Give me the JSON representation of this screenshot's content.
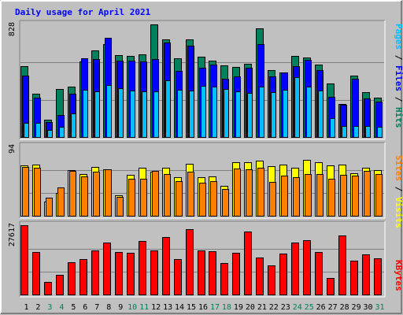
{
  "chart_data": {
    "type": "bar",
    "title": "Daily usage for April 2021",
    "days": [
      "1",
      "2",
      "3",
      "4",
      "5",
      "6",
      "7",
      "8",
      "9",
      "10",
      "11",
      "12",
      "13",
      "14",
      "15",
      "16",
      "17",
      "18",
      "19",
      "20",
      "21",
      "22",
      "23",
      "24",
      "25",
      "26",
      "27",
      "28",
      "29",
      "30",
      "31"
    ],
    "weekend_days": [
      "3",
      "4",
      "10",
      "11",
      "17",
      "18",
      "24",
      "25",
      "31"
    ],
    "colors": {
      "hits": "#00805c",
      "files": "#0000ff",
      "pages": "#00c0ff",
      "visits": "#ffff00",
      "sites": "#ff8000",
      "kbytes": "#ff0000",
      "title": "#0000ff",
      "weekday_label": "#000000",
      "weekend_label": "#00805c",
      "plot_bg": "#c0c0c0",
      "gridline": "#808080"
    },
    "panels": [
      {
        "id": "hits-files-pages",
        "max_label": "828",
        "ymax": 828,
        "series": [
          {
            "name": "Hits",
            "key": "hits",
            "values": [
              525,
              320,
              135,
              355,
              375,
              555,
              636,
              685,
              605,
              600,
              609,
              828,
              717,
              580,
              716,
              592,
              563,
              527,
              519,
              539,
              798,
              497,
              480,
              598,
              589,
              536,
              397,
              249,
              454,
              333,
              296
            ]
          },
          {
            "name": "Files",
            "key": "files",
            "values": [
              456,
              295,
              115,
              164,
              322,
              583,
              576,
              729,
              566,
              561,
              557,
              573,
              695,
              487,
              675,
              511,
              532,
              432,
              446,
              511,
              683,
              448,
              476,
              526,
              568,
              493,
              300,
              240,
              430,
              285,
              267
            ]
          },
          {
            "name": "Pages",
            "key": "pages",
            "values": [
              107,
              107,
              55,
              82,
              180,
              349,
              338,
              388,
              361,
              345,
              340,
              338,
              418,
              353,
              346,
              381,
              376,
              355,
              338,
              326,
              373,
              336,
              350,
              440,
              372,
              347,
              143,
              85,
              88,
              89,
              81
            ]
          }
        ]
      },
      {
        "id": "visits-sites",
        "max_label": "94",
        "ymax": 94,
        "series": [
          {
            "name": "Visits",
            "key": "visits",
            "values": [
              69,
              70,
              20,
              32,
              62,
              57,
              67,
              63,
              28,
              56,
              66,
              60,
              66,
              53,
              71,
              53,
              54,
              41,
              73,
              73,
              75,
              68,
              70,
              66,
              76,
              73,
              69,
              70,
              58,
              66,
              62
            ]
          },
          {
            "name": "Sites",
            "key": "sites",
            "values": [
              67,
              66,
              25,
              39,
              61,
              54,
              60,
              63,
              26,
              51,
              51,
              61,
              57,
              48,
              60,
              45,
              48,
              37,
              64,
              63,
              65,
              46,
              55,
              53,
              57,
              57,
              51,
              56,
              55,
              61,
              57
            ]
          }
        ]
      },
      {
        "id": "kbytes",
        "max_label": "27617",
        "ymax": 27617,
        "series": [
          {
            "name": "KBytes",
            "key": "kbytes",
            "values": [
              27617,
              17130,
              5306,
              8024,
              12985,
              14254,
              17822,
              20745,
              17020,
              16804,
              21263,
              17788,
              22978,
              14270,
              26104,
              17730,
              17349,
              12833,
              16603,
              25139,
              14910,
              11899,
              16520,
              20688,
              21735,
              17178,
              6722,
              23570,
              13761,
              16029,
              14660
            ]
          }
        ]
      }
    ]
  }
}
